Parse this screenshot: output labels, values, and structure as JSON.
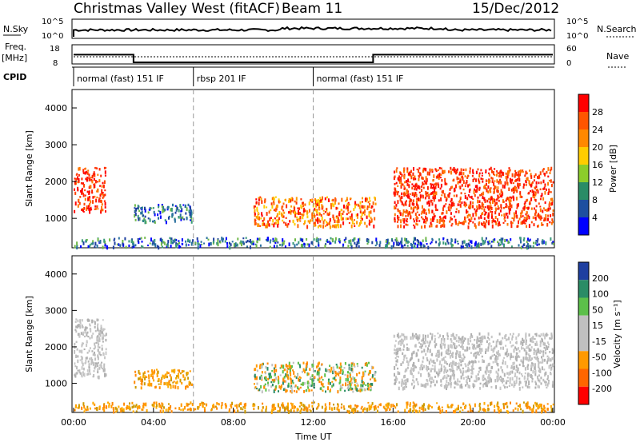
{
  "header": {
    "station": "Christmas Valley West (fitACF)",
    "beam": "Beam 11",
    "date": "15/Dec/2012"
  },
  "top_panels": {
    "nsky_label": "N.Sky",
    "nsearch_label": "N.Search",
    "nsky_ticks": [
      "10^5",
      "10^0"
    ],
    "nsearch_ticks": [
      "10^5",
      "10^0"
    ],
    "freq_label": "Freq.",
    "freq_unit": "[MHz]",
    "freq_ticks": [
      "18",
      "8"
    ],
    "nave_label": "Nave",
    "nave_ticks": [
      "60",
      "0"
    ],
    "cpid_label": "CPID",
    "cpid_segments": [
      {
        "label": "normal (fast) 151 IF",
        "start_h": 0,
        "end_h": 6
      },
      {
        "label": "rbsp 201 IF",
        "start_h": 6,
        "end_h": 12
      },
      {
        "label": "normal (fast) 151 IF",
        "start_h": 12,
        "end_h": 24
      }
    ],
    "freq_series": [
      {
        "start_h": 0,
        "end_h": 3,
        "value": 14.5
      },
      {
        "start_h": 3,
        "end_h": 15,
        "value": 10.5
      },
      {
        "start_h": 15,
        "end_h": 24,
        "value": 14.5
      }
    ]
  },
  "xaxis": {
    "label": "Time UT",
    "ticks": [
      "00:00",
      "04:00",
      "08:00",
      "12:00",
      "16:00",
      "20:00",
      "00:00"
    ],
    "range_h": [
      0,
      24
    ]
  },
  "chart_data": [
    {
      "type": "heatmap",
      "panel": "power",
      "ylabel": "Slant Range [km]",
      "ylim": [
        200,
        4500
      ],
      "yticks": [
        "1000",
        "2000",
        "3000",
        "4000"
      ],
      "colorbar_label": "Power [dB]",
      "colorbar_ticks": [
        "28",
        "24",
        "20",
        "16",
        "12",
        "8",
        "4"
      ],
      "colorbar_colors": [
        "#ff0000",
        "#ff5500",
        "#ff8800",
        "#ffcc00",
        "#8ccc2a",
        "#2a8c66",
        "#1e4fa0",
        "#0000ff"
      ],
      "regions": [
        {
          "t0": 0.0,
          "t1": 1.6,
          "r0": 1200,
          "r1": 2400,
          "level": "high"
        },
        {
          "t0": 3.0,
          "t1": 5.9,
          "r0": 900,
          "r1": 1400,
          "level": "low"
        },
        {
          "t0": 9.0,
          "t1": 15.1,
          "r0": 800,
          "r1": 1600,
          "level": "mid"
        },
        {
          "t0": 16.0,
          "t1": 24.0,
          "r0": 800,
          "r1": 2400,
          "level": "high"
        },
        {
          "t0": 0.0,
          "t1": 24.0,
          "r0": 250,
          "r1": 500,
          "level": "low"
        }
      ]
    },
    {
      "type": "heatmap",
      "panel": "velocity",
      "ylabel": "Slant Range [km]",
      "ylim": [
        200,
        4500
      ],
      "yticks": [
        "1000",
        "2000",
        "3000",
        "4000"
      ],
      "colorbar_label": "Velocity [m s⁻¹]",
      "colorbar_ticks": [
        "200",
        "100",
        "50",
        "15",
        "-15",
        "-50",
        "-100",
        "-200"
      ],
      "colorbar_colors": [
        "#1e3fa0",
        "#2a8c66",
        "#5cc04a",
        "#c0c0c0",
        "#c0c0c0",
        "#ff9900",
        "#ff6600",
        "#ff0000"
      ],
      "regions": [
        {
          "t0": 0.0,
          "t1": 1.6,
          "r0": 1200,
          "r1": 2800,
          "level": "grey"
        },
        {
          "t0": 3.0,
          "t1": 5.9,
          "r0": 900,
          "r1": 1400,
          "level": "orange"
        },
        {
          "t0": 9.0,
          "t1": 15.1,
          "r0": 800,
          "r1": 1600,
          "level": "mixed"
        },
        {
          "t0": 16.0,
          "t1": 24.0,
          "r0": 900,
          "r1": 2400,
          "level": "grey"
        },
        {
          "t0": 0.0,
          "t1": 24.0,
          "r0": 250,
          "r1": 500,
          "level": "orange"
        }
      ]
    }
  ]
}
